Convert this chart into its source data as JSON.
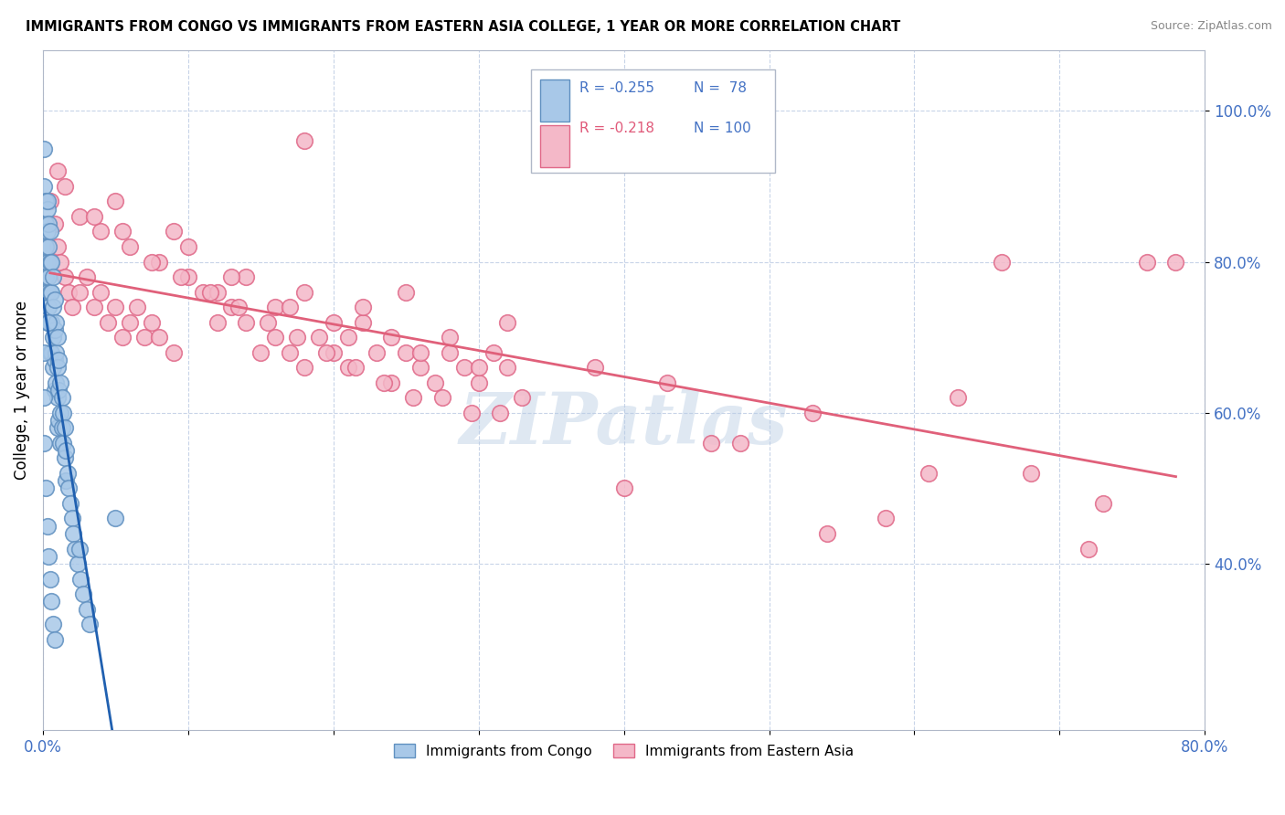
{
  "title": "IMMIGRANTS FROM CONGO VS IMMIGRANTS FROM EASTERN ASIA COLLEGE, 1 YEAR OR MORE CORRELATION CHART",
  "source": "Source: ZipAtlas.com",
  "ylabel": "College, 1 year or more",
  "xlim": [
    0.0,
    0.8
  ],
  "ylim": [
    0.18,
    1.08
  ],
  "ytick_positions": [
    0.4,
    0.6,
    0.8,
    1.0
  ],
  "ytick_labels": [
    "40.0%",
    "60.0%",
    "80.0%",
    "100.0%"
  ],
  "congo_R": -0.255,
  "congo_N": 78,
  "eastern_R": -0.218,
  "eastern_N": 100,
  "congo_color": "#a8c8e8",
  "eastern_color": "#f4b8c8",
  "congo_edge_color": "#6090c0",
  "eastern_edge_color": "#e06888",
  "congo_line_color": "#2060b0",
  "eastern_line_color": "#e0607a",
  "legend_label_congo": "Immigrants from Congo",
  "legend_label_eastern": "Immigrants from Eastern Asia",
  "watermark": "ZIPatlas",
  "congo_x": [
    0.001,
    0.001,
    0.002,
    0.002,
    0.002,
    0.002,
    0.003,
    0.003,
    0.003,
    0.003,
    0.003,
    0.004,
    0.004,
    0.004,
    0.004,
    0.005,
    0.005,
    0.005,
    0.005,
    0.005,
    0.006,
    0.006,
    0.006,
    0.006,
    0.007,
    0.007,
    0.007,
    0.007,
    0.008,
    0.008,
    0.008,
    0.008,
    0.009,
    0.009,
    0.009,
    0.01,
    0.01,
    0.01,
    0.01,
    0.011,
    0.011,
    0.011,
    0.012,
    0.012,
    0.012,
    0.013,
    0.013,
    0.014,
    0.014,
    0.015,
    0.015,
    0.016,
    0.016,
    0.017,
    0.018,
    0.019,
    0.02,
    0.021,
    0.022,
    0.024,
    0.026,
    0.028,
    0.03,
    0.032,
    0.001,
    0.001,
    0.001,
    0.002,
    0.003,
    0.004,
    0.005,
    0.006,
    0.007,
    0.008,
    0.004,
    0.003,
    0.025,
    0.05
  ],
  "congo_y": [
    0.95,
    0.9,
    0.88,
    0.85,
    0.82,
    0.78,
    0.87,
    0.84,
    0.8,
    0.76,
    0.72,
    0.85,
    0.82,
    0.78,
    0.74,
    0.84,
    0.8,
    0.76,
    0.72,
    0.68,
    0.8,
    0.76,
    0.72,
    0.68,
    0.78,
    0.74,
    0.7,
    0.66,
    0.75,
    0.71,
    0.67,
    0.63,
    0.72,
    0.68,
    0.64,
    0.7,
    0.66,
    0.62,
    0.58,
    0.67,
    0.63,
    0.59,
    0.64,
    0.6,
    0.56,
    0.62,
    0.58,
    0.6,
    0.56,
    0.58,
    0.54,
    0.55,
    0.51,
    0.52,
    0.5,
    0.48,
    0.46,
    0.44,
    0.42,
    0.4,
    0.38,
    0.36,
    0.34,
    0.32,
    0.68,
    0.62,
    0.56,
    0.5,
    0.45,
    0.41,
    0.38,
    0.35,
    0.32,
    0.3,
    0.72,
    0.88,
    0.42,
    0.46
  ],
  "eastern_x": [
    0.005,
    0.008,
    0.01,
    0.012,
    0.015,
    0.018,
    0.02,
    0.025,
    0.03,
    0.035,
    0.04,
    0.045,
    0.05,
    0.055,
    0.06,
    0.065,
    0.07,
    0.075,
    0.08,
    0.09,
    0.1,
    0.11,
    0.12,
    0.13,
    0.14,
    0.15,
    0.16,
    0.17,
    0.18,
    0.19,
    0.2,
    0.21,
    0.22,
    0.23,
    0.24,
    0.25,
    0.26,
    0.27,
    0.28,
    0.29,
    0.3,
    0.31,
    0.32,
    0.33,
    0.01,
    0.025,
    0.04,
    0.06,
    0.08,
    0.1,
    0.12,
    0.14,
    0.16,
    0.18,
    0.2,
    0.22,
    0.24,
    0.26,
    0.28,
    0.3,
    0.015,
    0.035,
    0.055,
    0.075,
    0.095,
    0.115,
    0.135,
    0.155,
    0.175,
    0.195,
    0.215,
    0.235,
    0.255,
    0.275,
    0.295,
    0.315,
    0.38,
    0.43,
    0.48,
    0.53,
    0.58,
    0.63,
    0.68,
    0.73,
    0.78,
    0.18,
    0.25,
    0.32,
    0.4,
    0.46,
    0.54,
    0.61,
    0.66,
    0.72,
    0.76,
    0.05,
    0.09,
    0.13,
    0.17,
    0.21
  ],
  "eastern_y": [
    0.88,
    0.85,
    0.82,
    0.8,
    0.78,
    0.76,
    0.74,
    0.76,
    0.78,
    0.74,
    0.76,
    0.72,
    0.74,
    0.7,
    0.72,
    0.74,
    0.7,
    0.72,
    0.7,
    0.68,
    0.78,
    0.76,
    0.72,
    0.74,
    0.72,
    0.68,
    0.7,
    0.68,
    0.66,
    0.7,
    0.68,
    0.66,
    0.72,
    0.68,
    0.64,
    0.68,
    0.66,
    0.64,
    0.68,
    0.66,
    0.64,
    0.68,
    0.66,
    0.62,
    0.92,
    0.86,
    0.84,
    0.82,
    0.8,
    0.82,
    0.76,
    0.78,
    0.74,
    0.76,
    0.72,
    0.74,
    0.7,
    0.68,
    0.7,
    0.66,
    0.9,
    0.86,
    0.84,
    0.8,
    0.78,
    0.76,
    0.74,
    0.72,
    0.7,
    0.68,
    0.66,
    0.64,
    0.62,
    0.62,
    0.6,
    0.6,
    0.66,
    0.64,
    0.56,
    0.6,
    0.46,
    0.62,
    0.52,
    0.48,
    0.8,
    0.96,
    0.76,
    0.72,
    0.5,
    0.56,
    0.44,
    0.52,
    0.8,
    0.42,
    0.8,
    0.88,
    0.84,
    0.78,
    0.74,
    0.7
  ]
}
